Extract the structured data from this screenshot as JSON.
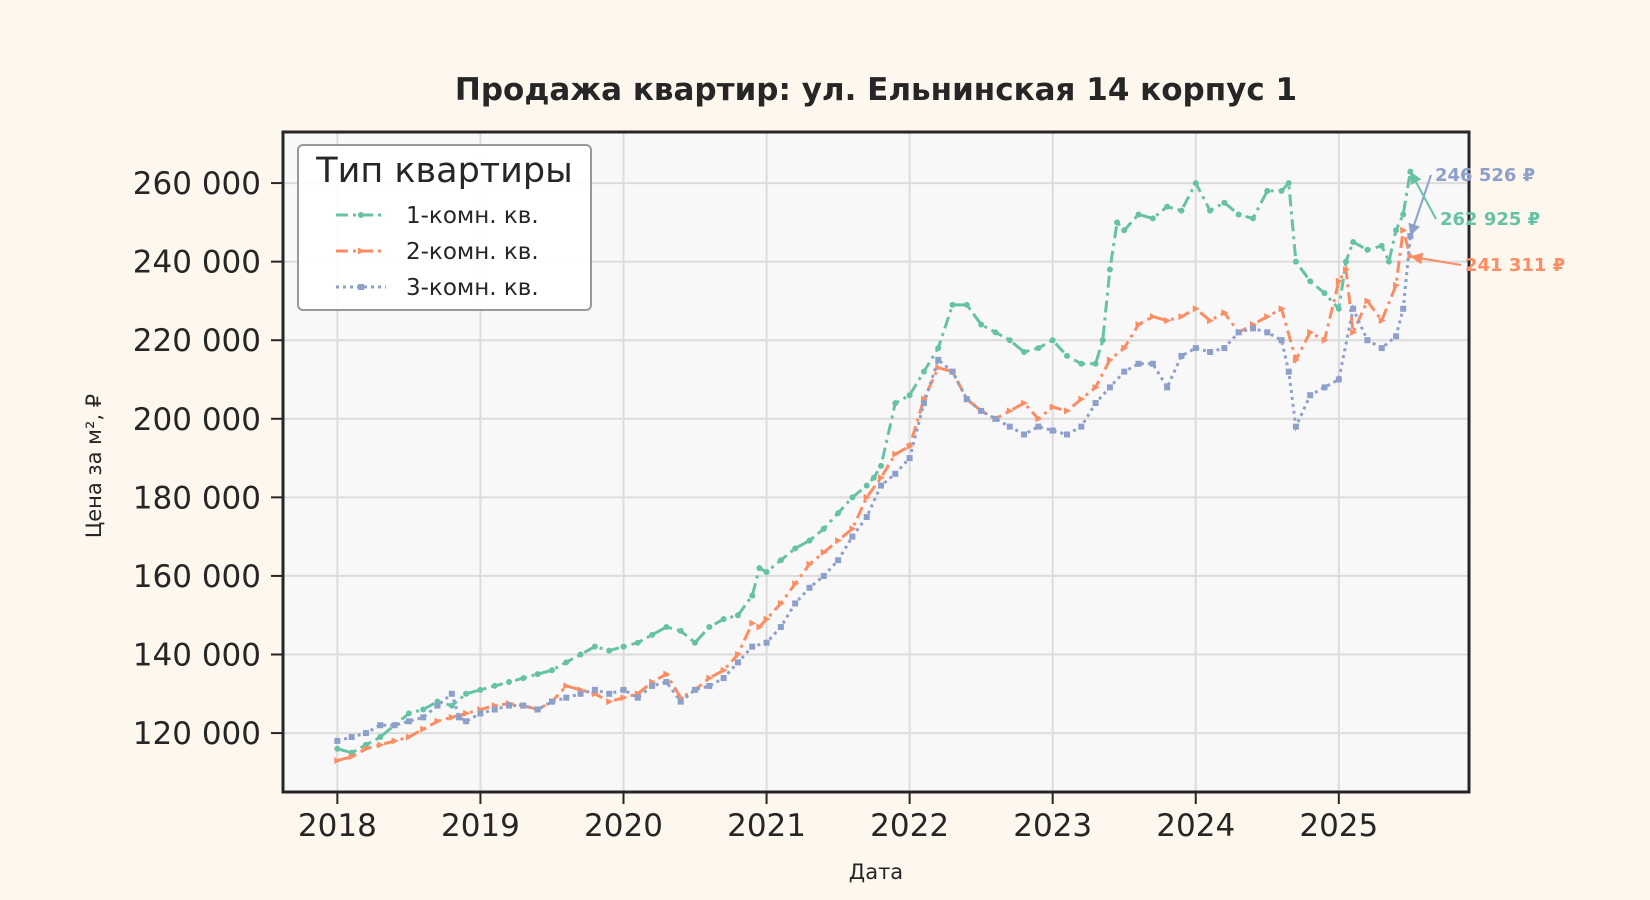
{
  "chart_data": {
    "type": "line",
    "title": "Продажа квартир: ул. Ельнинская 14 корпус 1",
    "xlabel": "Дата",
    "ylabel": "Цена за м², ₽",
    "xlim": [
      2017.62,
      2025.91
    ],
    "ylim": [
      105000,
      273000
    ],
    "x_ticks": [
      {
        "value": 2018,
        "label": "2018"
      },
      {
        "value": 2019,
        "label": "2019"
      },
      {
        "value": 2020,
        "label": "2020"
      },
      {
        "value": 2021,
        "label": "2021"
      },
      {
        "value": 2022,
        "label": "2022"
      },
      {
        "value": 2023,
        "label": "2023"
      },
      {
        "value": 2024,
        "label": "2024"
      },
      {
        "value": 2025,
        "label": "2025"
      }
    ],
    "y_ticks": [
      {
        "value": 120000,
        "label": "120 000"
      },
      {
        "value": 140000,
        "label": "140 000"
      },
      {
        "value": 160000,
        "label": "160 000"
      },
      {
        "value": 180000,
        "label": "180 000"
      },
      {
        "value": 200000,
        "label": "200 000"
      },
      {
        "value": 220000,
        "label": "220 000"
      },
      {
        "value": 240000,
        "label": "240 000"
      },
      {
        "value": 260000,
        "label": "260 000"
      }
    ],
    "grid": true,
    "legend": {
      "title": "Тип квартиры",
      "position": "top-left"
    },
    "series": [
      {
        "name": "1-комн. кв.",
        "color": "#66c2a5",
        "dash": "dash-dot",
        "marker": "circle",
        "x": [
          2018.0,
          2018.1,
          2018.2,
          2018.3,
          2018.4,
          2018.5,
          2018.6,
          2018.7,
          2018.8,
          2018.9,
          2019.0,
          2019.1,
          2019.2,
          2019.3,
          2019.4,
          2019.5,
          2019.6,
          2019.7,
          2019.8,
          2019.9,
          2020.0,
          2020.1,
          2020.2,
          2020.3,
          2020.4,
          2020.5,
          2020.6,
          2020.7,
          2020.8,
          2020.9,
          2020.95,
          2021.0,
          2021.1,
          2021.2,
          2021.3,
          2021.4,
          2021.5,
          2021.6,
          2021.7,
          2021.75,
          2021.8,
          2021.9,
          2022.0,
          2022.1,
          2022.2,
          2022.3,
          2022.4,
          2022.5,
          2022.6,
          2022.7,
          2022.8,
          2022.9,
          2023.0,
          2023.1,
          2023.2,
          2023.3,
          2023.35,
          2023.4,
          2023.45,
          2023.5,
          2023.6,
          2023.7,
          2023.8,
          2023.9,
          2024.0,
          2024.1,
          2024.2,
          2024.3,
          2024.4,
          2024.5,
          2024.6,
          2024.65,
          2024.7,
          2024.8,
          2024.9,
          2025.0,
          2025.05,
          2025.1,
          2025.2,
          2025.3,
          2025.35,
          2025.4,
          2025.45,
          2025.5
        ],
        "y": [
          116000,
          115000,
          117000,
          119000,
          122000,
          125000,
          126000,
          128000,
          127000,
          130000,
          131000,
          132000,
          133000,
          134000,
          135000,
          136000,
          138000,
          140000,
          142000,
          141000,
          142000,
          143000,
          145000,
          147000,
          146000,
          143000,
          147000,
          149000,
          150000,
          155000,
          162000,
          161000,
          164000,
          167000,
          169000,
          172000,
          176000,
          180000,
          183000,
          185000,
          188000,
          204000,
          206000,
          212000,
          218000,
          229000,
          229000,
          224000,
          222000,
          220000,
          217000,
          218000,
          220000,
          216000,
          214000,
          214000,
          220000,
          238000,
          250000,
          248000,
          252000,
          251000,
          254000,
          253000,
          260000,
          253000,
          255000,
          252000,
          251000,
          258000,
          258000,
          260000,
          240000,
          235000,
          232000,
          228000,
          240000,
          245000,
          243000,
          244000,
          240000,
          248000,
          252000,
          262925
        ]
      },
      {
        "name": "2-комн. кв.",
        "color": "#fc8d62",
        "dash": "dash-dot",
        "marker": "triangle",
        "x": [
          2018.0,
          2018.1,
          2018.2,
          2018.3,
          2018.4,
          2018.5,
          2018.6,
          2018.7,
          2018.8,
          2018.9,
          2019.0,
          2019.1,
          2019.2,
          2019.3,
          2019.4,
          2019.5,
          2019.6,
          2019.7,
          2019.8,
          2019.9,
          2020.0,
          2020.1,
          2020.2,
          2020.3,
          2020.4,
          2020.5,
          2020.6,
          2020.7,
          2020.8,
          2020.9,
          2020.95,
          2021.0,
          2021.1,
          2021.2,
          2021.3,
          2021.4,
          2021.5,
          2021.6,
          2021.7,
          2021.8,
          2021.9,
          2022.0,
          2022.1,
          2022.2,
          2022.3,
          2022.4,
          2022.5,
          2022.6,
          2022.7,
          2022.8,
          2022.9,
          2023.0,
          2023.1,
          2023.2,
          2023.3,
          2023.4,
          2023.5,
          2023.6,
          2023.7,
          2023.8,
          2023.9,
          2024.0,
          2024.1,
          2024.2,
          2024.3,
          2024.4,
          2024.5,
          2024.6,
          2024.7,
          2024.8,
          2024.9,
          2025.0,
          2025.05,
          2025.1,
          2025.2,
          2025.3,
          2025.4,
          2025.45,
          2025.5
        ],
        "y": [
          113000,
          114000,
          116000,
          117000,
          118000,
          119000,
          121000,
          123000,
          124000,
          125000,
          126000,
          127000,
          127500,
          127000,
          126000,
          128000,
          132000,
          131000,
          130000,
          128000,
          129000,
          130000,
          133000,
          135000,
          129000,
          131000,
          134000,
          136000,
          140000,
          148000,
          147000,
          149000,
          153000,
          158000,
          163000,
          166000,
          169000,
          172000,
          180000,
          185000,
          191000,
          193000,
          205000,
          213000,
          212000,
          205000,
          202000,
          200000,
          202000,
          204000,
          200000,
          203000,
          202000,
          205000,
          208000,
          215000,
          218000,
          224000,
          226000,
          225000,
          226000,
          228000,
          225000,
          227000,
          222000,
          224000,
          226000,
          228000,
          215000,
          222000,
          220000,
          235000,
          238000,
          222000,
          230000,
          225000,
          234000,
          248000,
          241311
        ]
      },
      {
        "name": "3-комн. кв.",
        "color": "#8da0cb",
        "dash": "dotted",
        "marker": "square",
        "x": [
          2018.0,
          2018.1,
          2018.2,
          2018.3,
          2018.4,
          2018.5,
          2018.6,
          2018.7,
          2018.8,
          2018.85,
          2018.9,
          2019.0,
          2019.1,
          2019.2,
          2019.3,
          2019.4,
          2019.5,
          2019.6,
          2019.7,
          2019.8,
          2019.9,
          2020.0,
          2020.1,
          2020.2,
          2020.3,
          2020.4,
          2020.5,
          2020.6,
          2020.7,
          2020.8,
          2020.9,
          2021.0,
          2021.1,
          2021.2,
          2021.3,
          2021.4,
          2021.5,
          2021.6,
          2021.7,
          2021.8,
          2021.9,
          2022.0,
          2022.1,
          2022.2,
          2022.3,
          2022.4,
          2022.5,
          2022.6,
          2022.7,
          2022.8,
          2022.9,
          2023.0,
          2023.1,
          2023.2,
          2023.3,
          2023.4,
          2023.5,
          2023.6,
          2023.7,
          2023.8,
          2023.9,
          2024.0,
          2024.1,
          2024.2,
          2024.3,
          2024.4,
          2024.5,
          2024.6,
          2024.65,
          2024.7,
          2024.8,
          2024.9,
          2025.0,
          2025.1,
          2025.2,
          2025.3,
          2025.4,
          2025.45,
          2025.5
        ],
        "y": [
          118000,
          119000,
          120000,
          122000,
          122000,
          123000,
          124000,
          127000,
          130000,
          124000,
          123000,
          125000,
          126000,
          127000,
          127000,
          126000,
          128000,
          129000,
          130000,
          131000,
          130000,
          131000,
          129000,
          132000,
          133000,
          128000,
          131000,
          132000,
          134000,
          138000,
          142000,
          143000,
          147000,
          153000,
          157000,
          160000,
          164000,
          170000,
          175000,
          183000,
          186000,
          190000,
          204000,
          215000,
          212000,
          205000,
          202000,
          200000,
          198000,
          196000,
          198000,
          197000,
          196000,
          198000,
          204000,
          208000,
          212000,
          214000,
          214000,
          208000,
          216000,
          218000,
          217000,
          218000,
          222000,
          223000,
          222000,
          220000,
          212000,
          198000,
          206000,
          208000,
          210000,
          228000,
          220000,
          218000,
          221000,
          228000,
          246526
        ]
      }
    ],
    "annotations": [
      {
        "series": "3-комн. кв.",
        "text": "246 526 ₽",
        "color": "#8da0cb"
      },
      {
        "series": "1-комн. кв.",
        "text": "262 925 ₽",
        "color": "#66c2a5"
      },
      {
        "series": "2-комн. кв.",
        "text": "241 311 ₽",
        "color": "#fc8d62"
      }
    ]
  }
}
